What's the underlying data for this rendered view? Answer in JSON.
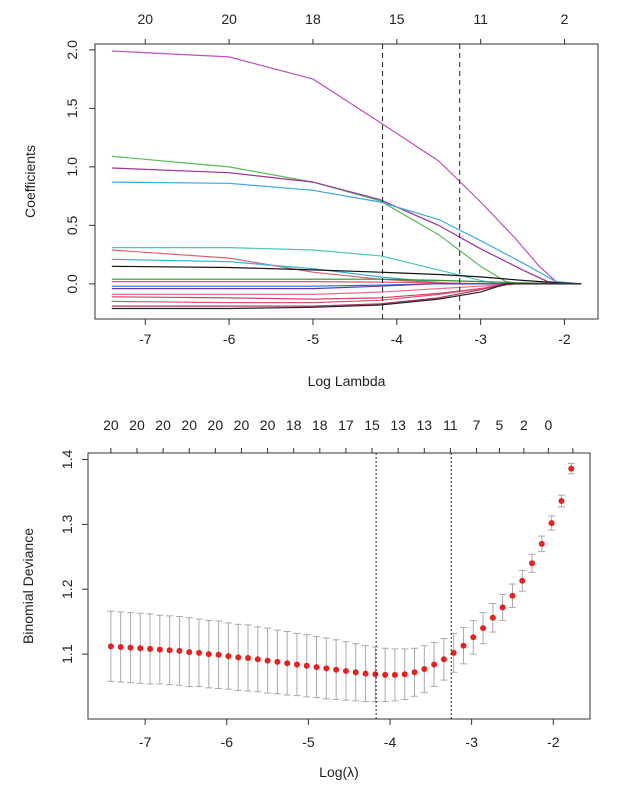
{
  "chart_data": [
    {
      "type": "line",
      "title": "",
      "xlabel": "Log Lambda",
      "ylabel": "Coefficients",
      "xlim": [
        -7.6,
        -1.6
      ],
      "ylim": [
        -0.3,
        2.05
      ],
      "x_ticks": [
        -7,
        -6,
        -5,
        -4,
        -3,
        -2
      ],
      "y_ticks": [
        0.0,
        0.5,
        1.0,
        1.5,
        2.0
      ],
      "x_tick_labels": [
        "-7",
        "-6",
        "-5",
        "-4",
        "-3",
        "-2"
      ],
      "y_tick_labels": [
        "0.0",
        "0.5",
        "1.0",
        "1.5",
        "2.0"
      ],
      "top_axis": {
        "positions": [
          -7.0,
          -6.0,
          -5.0,
          -4.0,
          -3.0,
          -2.0
        ],
        "labels": [
          "20",
          "20",
          "18",
          "15",
          "11",
          "2"
        ]
      },
      "vlines": [
        -4.17,
        -3.25
      ],
      "grid": false,
      "series": [
        {
          "color": "#c04ec0",
          "x": [
            -7.4,
            -6,
            -5,
            -4.2,
            -3.5,
            -3,
            -2.6,
            -2.3,
            -2.1,
            -1.8
          ],
          "y": [
            1.99,
            1.94,
            1.75,
            1.38,
            1.05,
            0.7,
            0.4,
            0.15,
            0.02,
            0
          ]
        },
        {
          "color": "#55bb55",
          "x": [
            -7.4,
            -6,
            -5,
            -4.2,
            -3.5,
            -3,
            -2.7,
            -2.5,
            -1.8
          ],
          "y": [
            1.09,
            1.0,
            0.87,
            0.71,
            0.42,
            0.15,
            0.02,
            0,
            0
          ]
        },
        {
          "color": "#a0309a",
          "x": [
            -7.4,
            -6,
            -5,
            -4.2,
            -3.5,
            -3,
            -2.5,
            -2.2,
            -1.8
          ],
          "y": [
            0.99,
            0.95,
            0.87,
            0.72,
            0.5,
            0.3,
            0.12,
            0.02,
            0
          ]
        },
        {
          "color": "#3aa6e0",
          "x": [
            -7.4,
            -6,
            -5,
            -4.2,
            -3.5,
            -3,
            -2.5,
            -2.1,
            -1.8
          ],
          "y": [
            0.87,
            0.86,
            0.8,
            0.7,
            0.55,
            0.37,
            0.18,
            0.02,
            0
          ]
        },
        {
          "color": "#44c8c4",
          "x": [
            -7.4,
            -6,
            -5,
            -4.2,
            -3.5,
            -3,
            -2.8,
            -1.8
          ],
          "y": [
            0.31,
            0.31,
            0.29,
            0.24,
            0.12,
            0.03,
            0,
            0
          ]
        },
        {
          "color": "#e06070",
          "x": [
            -7.4,
            -6,
            -5,
            -4.2,
            -3.5,
            -3.1,
            -1.8
          ],
          "y": [
            0.29,
            0.22,
            0.1,
            0.04,
            0.01,
            0,
            0
          ]
        },
        {
          "color": "#2fb2d8",
          "x": [
            -7.4,
            -6,
            -5,
            -4.2,
            -3.3,
            -1.8
          ],
          "y": [
            0.21,
            0.19,
            0.13,
            0.06,
            0,
            0
          ]
        },
        {
          "color": "#111111",
          "x": [
            -7.4,
            -6,
            -5,
            -4.2,
            -3.5,
            -3,
            -2.5,
            -2.1,
            -1.8
          ],
          "y": [
            0.15,
            0.14,
            0.12,
            0.1,
            0.08,
            0.06,
            0.03,
            0.01,
            0
          ]
        },
        {
          "color": "#2f8f2f",
          "x": [
            -7.4,
            -6,
            -5,
            -4.2,
            -3.5,
            -3,
            -2.6,
            -1.8
          ],
          "y": [
            0.04,
            0.04,
            0.04,
            0.04,
            0.03,
            0.02,
            0.01,
            0
          ]
        },
        {
          "color": "#d9566f",
          "x": [
            -7.4,
            -6,
            -5,
            -4.2,
            -3.5,
            -3,
            -1.8
          ],
          "y": [
            0.02,
            0.02,
            0.02,
            0.015,
            0.01,
            0,
            0
          ]
        },
        {
          "color": "#3f5fd9",
          "x": [
            -7.4,
            -6,
            -5,
            -4.2,
            -3.6,
            -1.8
          ],
          "y": [
            -0.02,
            -0.02,
            -0.02,
            -0.01,
            0,
            0
          ]
        },
        {
          "color": "#6a3aa2",
          "x": [
            -7.4,
            -6,
            -5,
            -4.2,
            -3.6,
            -1.8
          ],
          "y": [
            -0.04,
            -0.04,
            -0.04,
            -0.02,
            0,
            0
          ]
        },
        {
          "color": "#e86e8a",
          "x": [
            -7.4,
            -6,
            -5,
            -4.2,
            -3.5,
            -3,
            -2.6,
            -1.8
          ],
          "y": [
            -0.09,
            -0.09,
            -0.09,
            -0.07,
            -0.04,
            -0.02,
            0,
            0
          ]
        },
        {
          "color": "#cc4466",
          "x": [
            -7.4,
            -6,
            -5,
            -4.2,
            -3.5,
            -3,
            -2.6,
            -1.8
          ],
          "y": [
            -0.11,
            -0.12,
            -0.13,
            -0.12,
            -0.08,
            -0.04,
            0,
            0
          ]
        },
        {
          "color": "#e0506a",
          "x": [
            -7.4,
            -6,
            -5,
            -4.2,
            -3.5,
            -3,
            -2.7,
            -1.8
          ],
          "y": [
            -0.15,
            -0.16,
            -0.16,
            -0.14,
            -0.09,
            -0.04,
            0,
            0
          ]
        },
        {
          "color": "#b0306a",
          "x": [
            -7.4,
            -6,
            -5,
            -4.2,
            -3.5,
            -3,
            -2.7,
            -1.8
          ],
          "y": [
            -0.19,
            -0.19,
            -0.19,
            -0.17,
            -0.12,
            -0.05,
            0,
            0
          ]
        },
        {
          "color": "#222222",
          "x": [
            -7.4,
            -6,
            -5,
            -4.2,
            -3.5,
            -3,
            -2.7,
            -1.8
          ],
          "y": [
            -0.21,
            -0.21,
            -0.2,
            -0.18,
            -0.13,
            -0.07,
            0,
            0
          ]
        }
      ]
    },
    {
      "type": "scatter",
      "title": "",
      "xlabel": "Log(λ)",
      "ylabel": "Binomial Deviance",
      "xlim": [
        -7.7,
        -1.55
      ],
      "ylim": [
        1.0,
        1.41
      ],
      "x_ticks": [
        -7,
        -6,
        -5,
        -4,
        -3,
        -2
      ],
      "y_ticks": [
        1.1,
        1.2,
        1.3,
        1.4
      ],
      "x_tick_labels": [
        "-7",
        "-6",
        "-5",
        "-4",
        "-3",
        "-2"
      ],
      "y_tick_labels": [
        "1.1",
        "1.2",
        "1.3",
        "1.4"
      ],
      "top_axis": {
        "positions": [
          -7.42,
          -7.1,
          -6.78,
          -6.46,
          -6.14,
          -5.82,
          -5.5,
          -5.18,
          -4.86,
          -4.54,
          -4.22,
          -3.9,
          -3.58,
          -3.26,
          -2.94,
          -2.66,
          -2.36,
          -2.06,
          -1.76
        ],
        "labels": [
          "20",
          "20",
          "20",
          "20",
          "20",
          "20",
          "20",
          "18",
          "18",
          "17",
          "15",
          "13",
          "13",
          "11",
          "7",
          "5",
          "2",
          "0",
          ""
        ]
      },
      "vlines": [
        -4.17,
        -3.25
      ],
      "grid": false,
      "marker_color": "#e8211e",
      "errorbar_color": "#a9a9a9",
      "x": [
        -7.42,
        -7.3,
        -7.18,
        -7.06,
        -6.94,
        -6.82,
        -6.7,
        -6.58,
        -6.46,
        -6.34,
        -6.22,
        -6.1,
        -5.98,
        -5.86,
        -5.74,
        -5.62,
        -5.5,
        -5.38,
        -5.26,
        -5.14,
        -5.02,
        -4.9,
        -4.78,
        -4.66,
        -4.54,
        -4.42,
        -4.3,
        -4.18,
        -4.06,
        -3.94,
        -3.82,
        -3.7,
        -3.58,
        -3.46,
        -3.34,
        -3.22,
        -3.1,
        -2.98,
        -2.86,
        -2.74,
        -2.62,
        -2.5,
        -2.38,
        -2.26,
        -2.14,
        -2.02,
        -1.9,
        -1.78
      ],
      "y": [
        1.112,
        1.111,
        1.11,
        1.109,
        1.108,
        1.107,
        1.106,
        1.105,
        1.103,
        1.102,
        1.1,
        1.099,
        1.097,
        1.095,
        1.094,
        1.092,
        1.09,
        1.088,
        1.086,
        1.084,
        1.082,
        1.08,
        1.078,
        1.076,
        1.074,
        1.072,
        1.07,
        1.069,
        1.068,
        1.068,
        1.069,
        1.072,
        1.077,
        1.084,
        1.092,
        1.102,
        1.113,
        1.126,
        1.14,
        1.156,
        1.172,
        1.19,
        1.213,
        1.24,
        1.27,
        1.302,
        1.336,
        1.386
      ],
      "error_half_width": [
        0.054,
        0.054,
        0.054,
        0.054,
        0.054,
        0.053,
        0.053,
        0.053,
        0.053,
        0.052,
        0.052,
        0.052,
        0.051,
        0.051,
        0.051,
        0.05,
        0.05,
        0.049,
        0.049,
        0.048,
        0.048,
        0.047,
        0.047,
        0.046,
        0.045,
        0.044,
        0.043,
        0.042,
        0.041,
        0.04,
        0.039,
        0.037,
        0.036,
        0.034,
        0.032,
        0.03,
        0.028,
        0.026,
        0.024,
        0.022,
        0.02,
        0.018,
        0.016,
        0.014,
        0.012,
        0.011,
        0.009,
        0.008
      ]
    }
  ]
}
